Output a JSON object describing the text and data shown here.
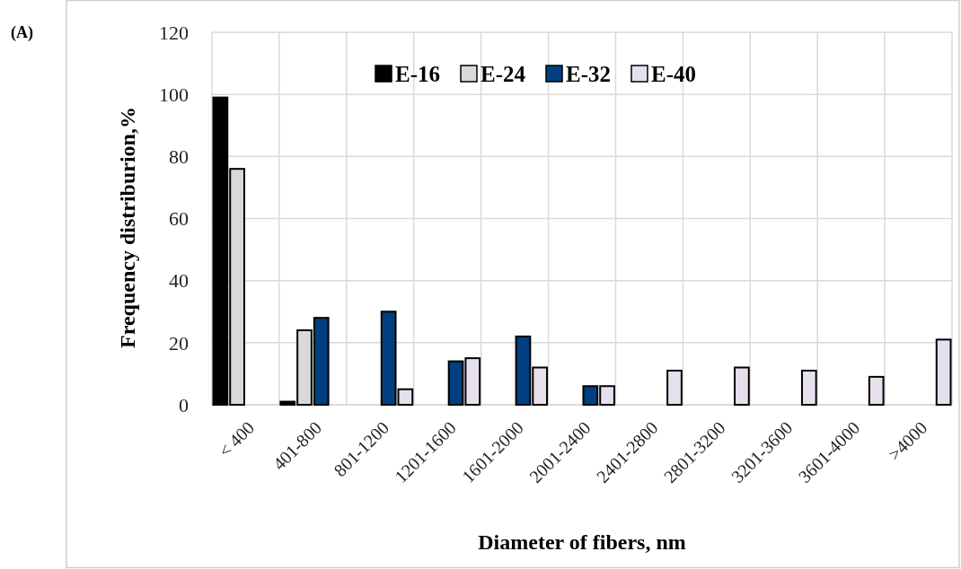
{
  "chart_data": {
    "type": "bar",
    "xlabel": "Diameter of fibers, nm",
    "ylabel": "Frequency distriburion,%",
    "annotations": [
      "(A)"
    ],
    "categories": [
      "< 400",
      "401-800",
      "801-1200",
      "1201-1600",
      "1601-2000",
      "2001-2400",
      "2401-2800",
      "2801-3200",
      "3201-3600",
      "3601-4000",
      ">4000"
    ],
    "series": [
      {
        "name": "E-16",
        "color": "#000000",
        "values": [
          99,
          1,
          null,
          null,
          null,
          null,
          null,
          null,
          null,
          null,
          null
        ]
      },
      {
        "name": "E-24",
        "color": "#d9d9d9",
        "values": [
          76,
          24,
          null,
          null,
          null,
          null,
          null,
          null,
          null,
          null,
          null
        ]
      },
      {
        "name": "E-32",
        "color": "#004080",
        "values": [
          null,
          28,
          30,
          14,
          22,
          6,
          null,
          null,
          null,
          null,
          null
        ]
      },
      {
        "name": "E-40",
        "color": "#e6e0ec",
        "values": [
          null,
          null,
          5,
          15,
          12,
          6,
          11,
          12,
          11,
          9,
          21
        ]
      }
    ],
    "ylim": [
      0,
      120
    ],
    "yticks": [
      0,
      20,
      40,
      60,
      80,
      100,
      120
    ],
    "grid": true,
    "legend": "top"
  }
}
